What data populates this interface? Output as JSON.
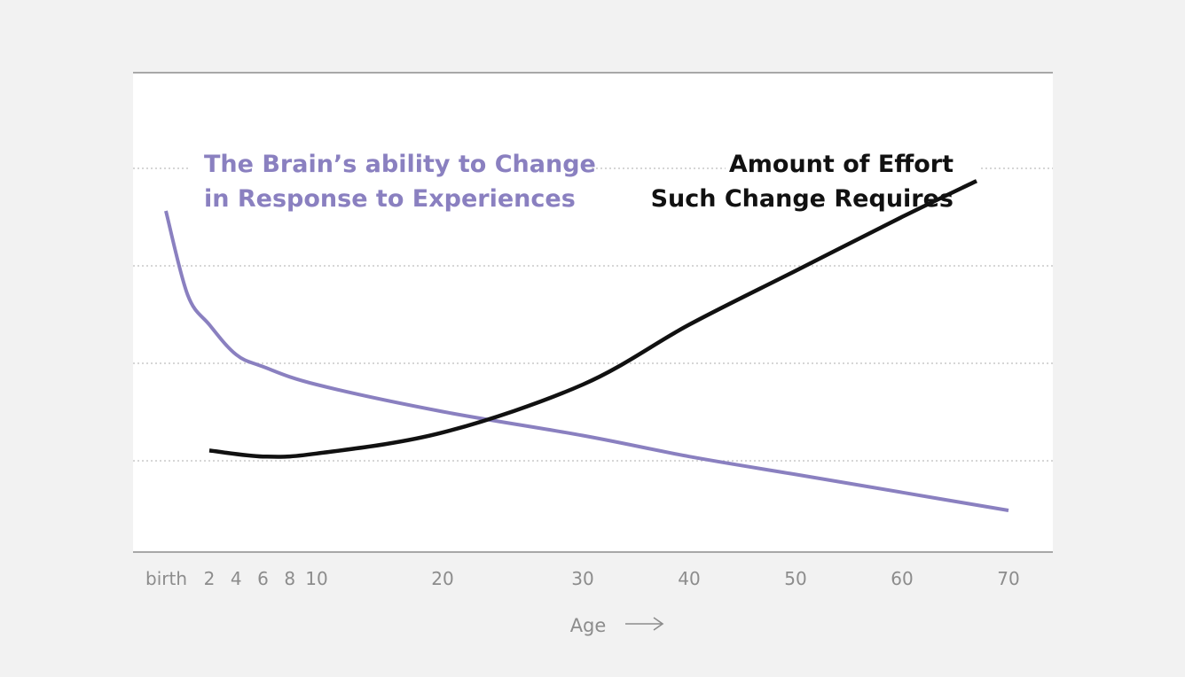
{
  "chart_data": {
    "type": "line",
    "xlabel": "Age",
    "x_ticks": [
      "birth",
      "2",
      "4",
      "6",
      "8",
      "10",
      "20",
      "30",
      "40",
      "50",
      "60",
      "70"
    ],
    "grid": "horizontal dotted",
    "series": [
      {
        "name": "The Brain’s ability to Change in Response to Experiences",
        "label_lines": [
          "The Brain’s ability to Change",
          "in Response to Experiences"
        ],
        "color": "#8a80c0",
        "points": [
          [
            0,
            100
          ],
          [
            1,
            72
          ],
          [
            2,
            62
          ],
          [
            4,
            52
          ],
          [
            6,
            48
          ],
          [
            10,
            42
          ],
          [
            20,
            33
          ],
          [
            30,
            25
          ],
          [
            40,
            18
          ],
          [
            50,
            12
          ],
          [
            60,
            6
          ],
          [
            70,
            0
          ]
        ]
      },
      {
        "name": "Amount of Effort Such Change Requires",
        "label_lines": [
          "Amount of Effort",
          "Such Change Requires"
        ],
        "color": "#111111",
        "points": [
          [
            2,
            20
          ],
          [
            6,
            18
          ],
          [
            10,
            19
          ],
          [
            20,
            26
          ],
          [
            30,
            42
          ],
          [
            40,
            62
          ],
          [
            50,
            80
          ],
          [
            60,
            98
          ],
          [
            67,
            110
          ]
        ]
      }
    ]
  }
}
